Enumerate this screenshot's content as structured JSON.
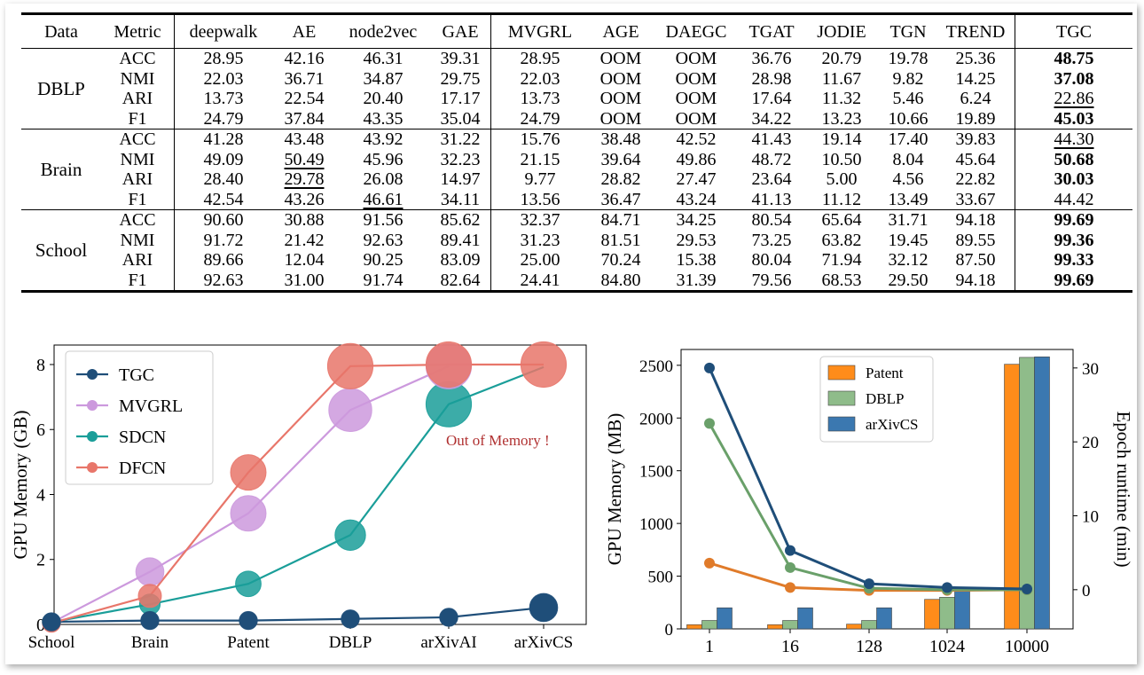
{
  "table": {
    "headers": [
      "Data",
      "Metric",
      "deepwalk",
      "AE",
      "node2vec",
      "GAE",
      "MVGRL",
      "AGE",
      "DAEGC",
      "TGAT",
      "JODIE",
      "TGN",
      "TREND",
      "TGC"
    ],
    "groups": [
      {
        "name": "DBLP",
        "rows": [
          {
            "metric": "ACC",
            "values": [
              "28.95",
              "42.16",
              "46.31",
              "39.31",
              "28.95",
              "OOM",
              "OOM",
              "36.76",
              "20.79",
              "19.78",
              "25.36",
              "48.75"
            ],
            "styles": [
              "",
              "",
              "",
              "",
              "",
              "",
              "",
              "",
              "",
              "",
              "",
              "b"
            ]
          },
          {
            "metric": "NMI",
            "values": [
              "22.03",
              "36.71",
              "34.87",
              "29.75",
              "22.03",
              "OOM",
              "OOM",
              "28.98",
              "11.67",
              "9.82",
              "14.25",
              "37.08"
            ],
            "styles": [
              "",
              "",
              "",
              "",
              "",
              "",
              "",
              "",
              "",
              "",
              "",
              "b"
            ]
          },
          {
            "metric": "ARI",
            "values": [
              "13.73",
              "22.54",
              "20.40",
              "17.17",
              "13.73",
              "OOM",
              "OOM",
              "17.64",
              "11.32",
              "5.46",
              "6.24",
              "22.86"
            ],
            "styles": [
              "",
              "",
              "",
              "",
              "",
              "",
              "",
              "",
              "",
              "",
              "",
              "u"
            ]
          },
          {
            "metric": "F1",
            "values": [
              "24.79",
              "37.84",
              "43.35",
              "35.04",
              "24.79",
              "OOM",
              "OOM",
              "34.22",
              "13.23",
              "10.66",
              "19.89",
              "45.03"
            ],
            "styles": [
              "",
              "",
              "",
              "",
              "",
              "",
              "",
              "",
              "",
              "",
              "",
              "b"
            ]
          }
        ]
      },
      {
        "name": "Brain",
        "rows": [
          {
            "metric": "ACC",
            "values": [
              "41.28",
              "43.48",
              "43.92",
              "31.22",
              "15.76",
              "38.48",
              "42.52",
              "41.43",
              "19.14",
              "17.40",
              "39.83",
              "44.30"
            ],
            "styles": [
              "",
              "",
              "",
              "",
              "",
              "",
              "",
              "",
              "",
              "",
              "",
              "u"
            ]
          },
          {
            "metric": "NMI",
            "values": [
              "49.09",
              "50.49",
              "45.96",
              "32.23",
              "21.15",
              "39.64",
              "49.86",
              "48.72",
              "10.50",
              "8.04",
              "45.64",
              "50.68"
            ],
            "styles": [
              "",
              "u",
              "",
              "",
              "",
              "",
              "",
              "",
              "",
              "",
              "",
              "b"
            ]
          },
          {
            "metric": "ARI",
            "values": [
              "28.40",
              "29.78",
              "26.08",
              "14.97",
              "9.77",
              "28.82",
              "27.47",
              "23.64",
              "5.00",
              "4.56",
              "22.82",
              "30.03"
            ],
            "styles": [
              "",
              "u",
              "",
              "",
              "",
              "",
              "",
              "",
              "",
              "",
              "",
              "b"
            ]
          },
          {
            "metric": "F1",
            "values": [
              "42.54",
              "43.26",
              "46.61",
              "34.11",
              "13.56",
              "36.47",
              "43.24",
              "41.13",
              "11.12",
              "13.49",
              "33.67",
              "44.42"
            ],
            "styles": [
              "",
              "",
              "u",
              "",
              "",
              "",
              "",
              "",
              "",
              "",
              "",
              ""
            ]
          }
        ]
      },
      {
        "name": "School",
        "rows": [
          {
            "metric": "ACC",
            "values": [
              "90.60",
              "30.88",
              "91.56",
              "85.62",
              "32.37",
              "84.71",
              "34.25",
              "80.54",
              "65.64",
              "31.71",
              "94.18",
              "99.69"
            ],
            "styles": [
              "",
              "",
              "",
              "",
              "",
              "",
              "",
              "",
              "",
              "",
              "",
              "b"
            ]
          },
          {
            "metric": "NMI",
            "values": [
              "91.72",
              "21.42",
              "92.63",
              "89.41",
              "31.23",
              "81.51",
              "29.53",
              "73.25",
              "63.82",
              "19.45",
              "89.55",
              "99.36"
            ],
            "styles": [
              "",
              "",
              "",
              "",
              "",
              "",
              "",
              "",
              "",
              "",
              "",
              "b"
            ]
          },
          {
            "metric": "ARI",
            "values": [
              "89.66",
              "12.04",
              "90.25",
              "83.09",
              "25.00",
              "70.24",
              "15.38",
              "80.04",
              "71.94",
              "32.12",
              "87.50",
              "99.33"
            ],
            "styles": [
              "",
              "",
              "",
              "",
              "",
              "",
              "",
              "",
              "",
              "",
              "",
              "b"
            ]
          },
          {
            "metric": "F1",
            "values": [
              "92.63",
              "31.00",
              "91.74",
              "82.64",
              "24.41",
              "84.80",
              "31.39",
              "79.56",
              "68.53",
              "29.50",
              "94.18",
              "99.69"
            ],
            "styles": [
              "",
              "",
              "",
              "",
              "",
              "",
              "",
              "",
              "",
              "",
              "",
              "b"
            ]
          }
        ]
      }
    ]
  },
  "chart_data": [
    {
      "type": "line",
      "categories": [
        "School",
        "Brain",
        "Patent",
        "DBLP",
        "arXivAI",
        "arXivCS"
      ],
      "ylabel": "GPU Memory (GB)",
      "xlabel": "",
      "ylim": [
        0,
        8.6
      ],
      "yticks": [
        0,
        2,
        4,
        6,
        8
      ],
      "legend": "top-left",
      "annotation": "Out of Memory !",
      "series": [
        {
          "name": "TGC",
          "color": "#1f4e79",
          "values": [
            0.08,
            0.12,
            0.12,
            0.17,
            0.22,
            0.52
          ],
          "size": [
            0.3,
            0.3,
            0.3,
            0.3,
            0.3,
            0.7
          ]
        },
        {
          "name": "MVGRL",
          "color": "#cc99dd",
          "values": [
            0.05,
            1.62,
            3.42,
            6.6,
            7.95,
            null
          ],
          "size": [
            0.2,
            0.7,
            1.0,
            1.3,
            1.4,
            0
          ]
        },
        {
          "name": "SDCN",
          "color": "#1a9e99",
          "values": [
            0.07,
            0.62,
            1.25,
            2.75,
            6.78,
            7.92
          ],
          "size": [
            0.3,
            0.4,
            0.6,
            0.8,
            1.4,
            0
          ]
        },
        {
          "name": "DFCN",
          "color": "#e8766a",
          "values": [
            0.04,
            0.88,
            4.68,
            7.95,
            8.0,
            8.0
          ],
          "size": [
            0.3,
            0.5,
            1.0,
            1.4,
            1.4,
            1.4
          ]
        }
      ]
    },
    {
      "type": "bar",
      "categories": [
        "1",
        "16",
        "128",
        "1024",
        "10000"
      ],
      "ylabel": "GPU Memory (MB)",
      "y2label": "Epoch runtime (min)",
      "ylim": [
        0,
        2650
      ],
      "yticks": [
        0,
        500,
        1000,
        1500,
        2000,
        2500
      ],
      "y2lim": [
        -5.3,
        32.5
      ],
      "y2ticks": [
        0,
        10,
        20,
        30
      ],
      "legend": "top-center",
      "series": [
        {
          "name": "Patent",
          "bar_color": "#ff8c1a",
          "line_color": "#e07b2a",
          "bars": [
            40,
            40,
            45,
            280,
            2510
          ],
          "line": [
            3.6,
            0.3,
            -0.1,
            -0.1,
            0.0
          ]
        },
        {
          "name": "DBLP",
          "bar_color": "#8fbc8a",
          "line_color": "#6aa06a",
          "bars": [
            80,
            80,
            80,
            300,
            2575
          ],
          "line": [
            22.5,
            3.0,
            0.2,
            0.0,
            0.0
          ]
        },
        {
          "name": "arXivCS",
          "bar_color": "#3b78b0",
          "line_color": "#1f4e79",
          "bars": [
            200,
            200,
            200,
            360,
            2580
          ],
          "line": [
            30.0,
            5.3,
            0.8,
            0.3,
            0.1
          ]
        }
      ]
    }
  ]
}
